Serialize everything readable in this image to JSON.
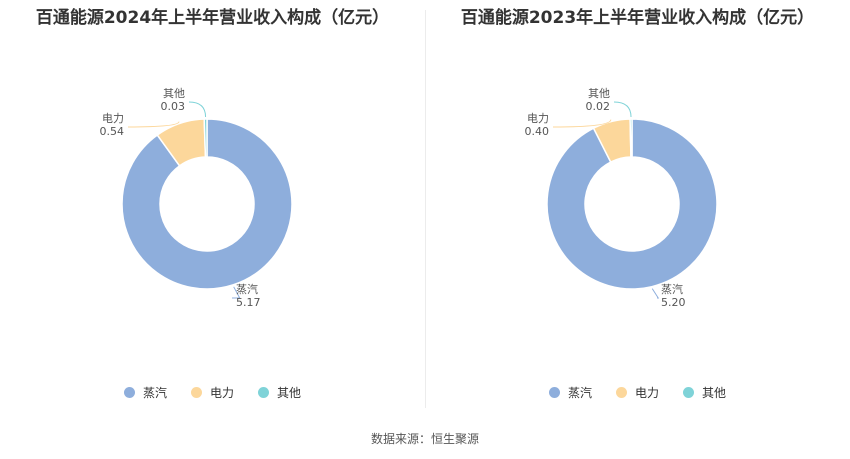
{
  "source": "数据来源：恒生聚源",
  "colors": {
    "蒸汽": "#8eaedc",
    "电力": "#fcd79b",
    "其他": "#7fd3d8"
  },
  "chart_data": [
    {
      "type": "pie",
      "title": "百通能源2024年上半年营业收入构成（亿元）",
      "categories": [
        "蒸汽",
        "电力",
        "其他"
      ],
      "values": [
        5.17,
        0.54,
        0.03
      ],
      "value_labels": [
        "5.17",
        "0.54",
        "0.03"
      ],
      "legend": "bottom"
    },
    {
      "type": "pie",
      "title": "百通能源2023年上半年营业收入构成（亿元）",
      "categories": [
        "蒸汽",
        "电力",
        "其他"
      ],
      "values": [
        5.2,
        0.4,
        0.02
      ],
      "value_labels": [
        "5.20",
        "0.40",
        "0.02"
      ],
      "legend": "bottom"
    }
  ]
}
